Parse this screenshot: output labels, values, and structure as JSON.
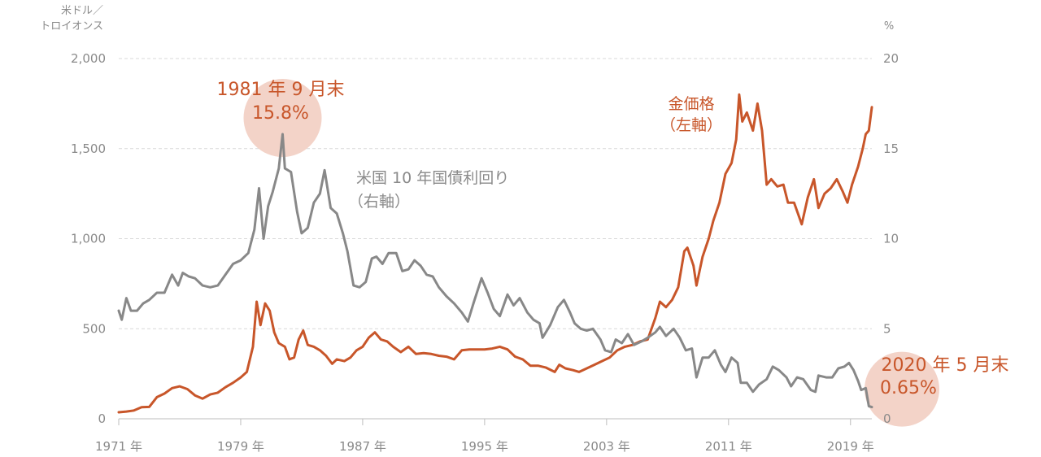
{
  "chart_data": {
    "type": "line",
    "left_unit": [
      "米ドル／",
      "トロイオンス"
    ],
    "right_unit": "%",
    "x_tick_labels": [
      "1971 年",
      "1979 年",
      "1987 年",
      "1995 年",
      "2003 年",
      "2011 年",
      "2019 年"
    ],
    "x_tick_years": [
      1971,
      1979,
      1987,
      1995,
      2003,
      2011,
      2019
    ],
    "xlim": [
      1971,
      2020.4
    ],
    "y_left": {
      "ylim": [
        0,
        2000
      ],
      "ticks": [
        0,
        500,
        1000,
        1500,
        2000
      ],
      "tick_labels": [
        "0",
        "500",
        "1,000",
        "1,500",
        "2,000"
      ]
    },
    "y_right": {
      "ylim": [
        0,
        20
      ],
      "ticks": [
        0,
        5,
        10,
        15,
        20
      ],
      "tick_labels": [
        "0",
        "5",
        "10",
        "15",
        "20"
      ]
    },
    "grid": "horizontal dashed",
    "colors": {
      "gold": "#c8562a",
      "yield": "#888888",
      "bubble": "#f3d3c8",
      "grid": "#d9d9d9",
      "tick": "#8a8a8a"
    },
    "series": [
      {
        "name_lines": [
          "金価格",
          "（左軸）"
        ],
        "axis": "left",
        "color": "#c8562a",
        "points": [
          [
            1971.0,
            36
          ],
          [
            1971.5,
            40
          ],
          [
            1972.0,
            46
          ],
          [
            1972.5,
            64
          ],
          [
            1973.0,
            66
          ],
          [
            1973.5,
            120
          ],
          [
            1974.0,
            140
          ],
          [
            1974.5,
            170
          ],
          [
            1975.0,
            180
          ],
          [
            1975.5,
            165
          ],
          [
            1976.0,
            130
          ],
          [
            1976.5,
            112
          ],
          [
            1977.0,
            135
          ],
          [
            1977.5,
            145
          ],
          [
            1978.0,
            175
          ],
          [
            1978.5,
            200
          ],
          [
            1979.0,
            230
          ],
          [
            1979.4,
            260
          ],
          [
            1979.8,
            400
          ],
          [
            1980.05,
            650
          ],
          [
            1980.3,
            520
          ],
          [
            1980.6,
            640
          ],
          [
            1980.9,
            600
          ],
          [
            1981.2,
            480
          ],
          [
            1981.5,
            420
          ],
          [
            1981.9,
            400
          ],
          [
            1982.2,
            330
          ],
          [
            1982.5,
            340
          ],
          [
            1982.8,
            440
          ],
          [
            1983.1,
            490
          ],
          [
            1983.4,
            410
          ],
          [
            1983.8,
            400
          ],
          [
            1984.2,
            380
          ],
          [
            1984.6,
            350
          ],
          [
            1985.0,
            305
          ],
          [
            1985.3,
            330
          ],
          [
            1985.8,
            320
          ],
          [
            1986.2,
            340
          ],
          [
            1986.6,
            380
          ],
          [
            1987.0,
            400
          ],
          [
            1987.4,
            450
          ],
          [
            1987.8,
            480
          ],
          [
            1988.2,
            440
          ],
          [
            1988.6,
            430
          ],
          [
            1989.0,
            400
          ],
          [
            1989.5,
            370
          ],
          [
            1990.0,
            400
          ],
          [
            1990.5,
            360
          ],
          [
            1991.0,
            365
          ],
          [
            1991.5,
            360
          ],
          [
            1992.0,
            350
          ],
          [
            1992.5,
            345
          ],
          [
            1993.0,
            330
          ],
          [
            1993.5,
            380
          ],
          [
            1994.0,
            385
          ],
          [
            1994.5,
            385
          ],
          [
            1995.0,
            385
          ],
          [
            1995.5,
            390
          ],
          [
            1996.0,
            400
          ],
          [
            1996.5,
            385
          ],
          [
            1997.0,
            345
          ],
          [
            1997.5,
            330
          ],
          [
            1998.0,
            295
          ],
          [
            1998.5,
            295
          ],
          [
            1999.0,
            285
          ],
          [
            1999.6,
            260
          ],
          [
            1999.9,
            300
          ],
          [
            2000.3,
            280
          ],
          [
            2000.8,
            270
          ],
          [
            2001.2,
            260
          ],
          [
            2001.7,
            280
          ],
          [
            2002.2,
            300
          ],
          [
            2002.7,
            320
          ],
          [
            2003.2,
            340
          ],
          [
            2003.7,
            380
          ],
          [
            2004.2,
            400
          ],
          [
            2004.7,
            410
          ],
          [
            2005.2,
            430
          ],
          [
            2005.7,
            440
          ],
          [
            2006.2,
            560
          ],
          [
            2006.5,
            650
          ],
          [
            2006.9,
            620
          ],
          [
            2007.3,
            660
          ],
          [
            2007.7,
            730
          ],
          [
            2008.1,
            930
          ],
          [
            2008.3,
            950
          ],
          [
            2008.7,
            850
          ],
          [
            2008.9,
            740
          ],
          [
            2009.3,
            900
          ],
          [
            2009.7,
            1000
          ],
          [
            2010.0,
            1100
          ],
          [
            2010.4,
            1200
          ],
          [
            2010.8,
            1360
          ],
          [
            2011.2,
            1420
          ],
          [
            2011.5,
            1550
          ],
          [
            2011.7,
            1800
          ],
          [
            2011.9,
            1650
          ],
          [
            2012.2,
            1700
          ],
          [
            2012.6,
            1600
          ],
          [
            2012.9,
            1750
          ],
          [
            2013.2,
            1600
          ],
          [
            2013.5,
            1300
          ],
          [
            2013.8,
            1330
          ],
          [
            2014.2,
            1290
          ],
          [
            2014.6,
            1300
          ],
          [
            2014.9,
            1200
          ],
          [
            2015.3,
            1200
          ],
          [
            2015.8,
            1080
          ],
          [
            2016.2,
            1230
          ],
          [
            2016.6,
            1330
          ],
          [
            2016.9,
            1170
          ],
          [
            2017.3,
            1250
          ],
          [
            2017.7,
            1280
          ],
          [
            2018.1,
            1330
          ],
          [
            2018.5,
            1260
          ],
          [
            2018.8,
            1200
          ],
          [
            2019.1,
            1300
          ],
          [
            2019.5,
            1400
          ],
          [
            2019.8,
            1500
          ],
          [
            2020.0,
            1580
          ],
          [
            2020.2,
            1600
          ],
          [
            2020.4,
            1730
          ]
        ]
      },
      {
        "name_lines": [
          "米国 10 年国債利回り",
          "（右軸）"
        ],
        "axis": "right",
        "color": "#888888",
        "points": [
          [
            1971.0,
            6.0
          ],
          [
            1971.2,
            5.5
          ],
          [
            1971.5,
            6.7
          ],
          [
            1971.8,
            6.0
          ],
          [
            1972.2,
            6.0
          ],
          [
            1972.6,
            6.4
          ],
          [
            1973.0,
            6.6
          ],
          [
            1973.5,
            7.0
          ],
          [
            1974.0,
            7.0
          ],
          [
            1974.5,
            8.0
          ],
          [
            1974.9,
            7.4
          ],
          [
            1975.2,
            8.1
          ],
          [
            1975.6,
            7.9
          ],
          [
            1976.0,
            7.8
          ],
          [
            1976.5,
            7.4
          ],
          [
            1977.0,
            7.3
          ],
          [
            1977.5,
            7.4
          ],
          [
            1978.0,
            8.0
          ],
          [
            1978.5,
            8.6
          ],
          [
            1979.0,
            8.8
          ],
          [
            1979.5,
            9.2
          ],
          [
            1979.9,
            10.5
          ],
          [
            1980.2,
            12.8
          ],
          [
            1980.5,
            10.0
          ],
          [
            1980.8,
            11.8
          ],
          [
            1981.1,
            12.6
          ],
          [
            1981.5,
            13.9
          ],
          [
            1981.75,
            15.8
          ],
          [
            1981.9,
            13.9
          ],
          [
            1982.3,
            13.7
          ],
          [
            1982.7,
            11.5
          ],
          [
            1983.0,
            10.3
          ],
          [
            1983.4,
            10.6
          ],
          [
            1983.8,
            12.0
          ],
          [
            1984.2,
            12.5
          ],
          [
            1984.5,
            13.8
          ],
          [
            1984.9,
            11.7
          ],
          [
            1985.3,
            11.4
          ],
          [
            1985.7,
            10.3
          ],
          [
            1986.0,
            9.3
          ],
          [
            1986.4,
            7.4
          ],
          [
            1986.8,
            7.3
          ],
          [
            1987.2,
            7.6
          ],
          [
            1987.6,
            8.9
          ],
          [
            1987.9,
            9.0
          ],
          [
            1988.3,
            8.6
          ],
          [
            1988.7,
            9.2
          ],
          [
            1989.2,
            9.2
          ],
          [
            1989.6,
            8.2
          ],
          [
            1990.0,
            8.3
          ],
          [
            1990.4,
            8.8
          ],
          [
            1990.8,
            8.5
          ],
          [
            1991.2,
            8.0
          ],
          [
            1991.6,
            7.9
          ],
          [
            1992.0,
            7.3
          ],
          [
            1992.5,
            6.8
          ],
          [
            1993.0,
            6.4
          ],
          [
            1993.5,
            5.9
          ],
          [
            1993.9,
            5.4
          ],
          [
            1994.3,
            6.5
          ],
          [
            1994.8,
            7.8
          ],
          [
            1995.2,
            7.0
          ],
          [
            1995.6,
            6.1
          ],
          [
            1996.0,
            5.7
          ],
          [
            1996.5,
            6.9
          ],
          [
            1996.9,
            6.3
          ],
          [
            1997.3,
            6.7
          ],
          [
            1997.8,
            5.9
          ],
          [
            1998.2,
            5.5
          ],
          [
            1998.6,
            5.3
          ],
          [
            1998.8,
            4.5
          ],
          [
            1999.3,
            5.2
          ],
          [
            1999.8,
            6.2
          ],
          [
            2000.2,
            6.6
          ],
          [
            2000.6,
            5.9
          ],
          [
            2000.9,
            5.3
          ],
          [
            2001.3,
            5.0
          ],
          [
            2001.7,
            4.9
          ],
          [
            2002.1,
            5.0
          ],
          [
            2002.6,
            4.4
          ],
          [
            2002.9,
            3.8
          ],
          [
            2003.3,
            3.7
          ],
          [
            2003.6,
            4.4
          ],
          [
            2004.0,
            4.2
          ],
          [
            2004.4,
            4.7
          ],
          [
            2004.8,
            4.1
          ],
          [
            2005.3,
            4.3
          ],
          [
            2005.7,
            4.5
          ],
          [
            2006.2,
            4.8
          ],
          [
            2006.5,
            5.1
          ],
          [
            2006.9,
            4.6
          ],
          [
            2007.4,
            5.0
          ],
          [
            2007.8,
            4.5
          ],
          [
            2008.2,
            3.8
          ],
          [
            2008.6,
            3.9
          ],
          [
            2008.9,
            2.3
          ],
          [
            2009.3,
            3.4
          ],
          [
            2009.7,
            3.4
          ],
          [
            2010.1,
            3.8
          ],
          [
            2010.5,
            3.0
          ],
          [
            2010.8,
            2.6
          ],
          [
            2011.2,
            3.4
          ],
          [
            2011.6,
            3.1
          ],
          [
            2011.8,
            2.0
          ],
          [
            2012.2,
            2.0
          ],
          [
            2012.6,
            1.5
          ],
          [
            2013.0,
            1.9
          ],
          [
            2013.5,
            2.2
          ],
          [
            2013.9,
            2.9
          ],
          [
            2014.3,
            2.7
          ],
          [
            2014.8,
            2.3
          ],
          [
            2015.1,
            1.8
          ],
          [
            2015.5,
            2.3
          ],
          [
            2015.9,
            2.2
          ],
          [
            2016.4,
            1.6
          ],
          [
            2016.7,
            1.5
          ],
          [
            2016.9,
            2.4
          ],
          [
            2017.4,
            2.3
          ],
          [
            2017.8,
            2.3
          ],
          [
            2018.2,
            2.8
          ],
          [
            2018.6,
            2.9
          ],
          [
            2018.9,
            3.1
          ],
          [
            2019.2,
            2.7
          ],
          [
            2019.5,
            2.1
          ],
          [
            2019.7,
            1.6
          ],
          [
            2020.0,
            1.7
          ],
          [
            2020.2,
            0.7
          ],
          [
            2020.4,
            0.65
          ]
        ]
      }
    ],
    "annotations": [
      {
        "lines": [
          "1981 年 9 月末",
          "15.8%"
        ],
        "x": 1981.75,
        "y": 15.8,
        "axis": "right"
      },
      {
        "lines": [
          "2020 年 5 月末",
          "0.65%"
        ],
        "x": 2020.4,
        "y": 0.65,
        "axis": "right"
      }
    ]
  }
}
